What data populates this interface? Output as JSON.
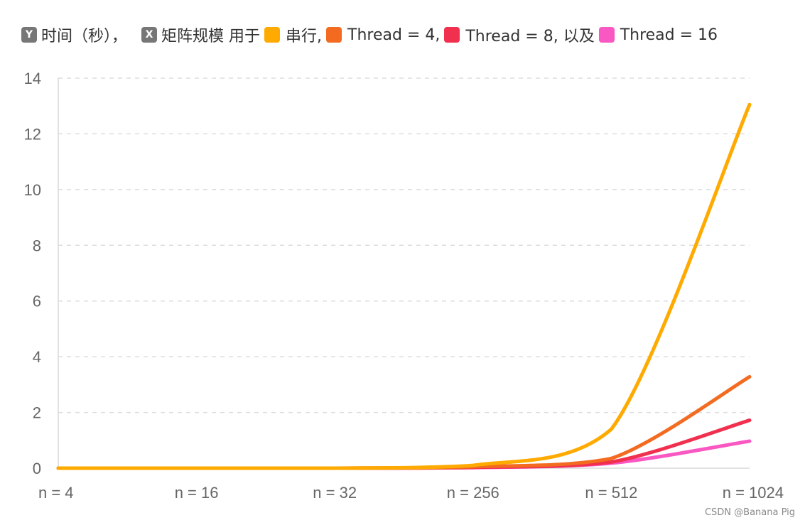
{
  "legend": {
    "y_badge": "Y",
    "y_text": "时间（秒），",
    "x_badge": "X",
    "x_text": "矩阵规模 用于",
    "items": [
      {
        "label": "串行,",
        "color": "#FFAA00"
      },
      {
        "label": "Thread = 4,",
        "color": "#F26B21"
      },
      {
        "label": "Thread = 8, 以及",
        "color": "#F0304E"
      },
      {
        "label": "Thread = 16",
        "color": "#F957C2"
      }
    ]
  },
  "watermark": "CSDN @Banana Pig",
  "chart_data": {
    "type": "line",
    "title": "",
    "xlabel": "",
    "ylabel": "",
    "categories": [
      "n = 4",
      "n = 16",
      "n = 32",
      "n = 256",
      "n = 512",
      "n = 1024"
    ],
    "ylim": [
      0,
      14
    ],
    "yticks": [
      0,
      2,
      4,
      6,
      8,
      10,
      12,
      14
    ],
    "grid": true,
    "legend_position": "top",
    "series": [
      {
        "name": "串行",
        "color": "#FFAA00",
        "values": [
          0,
          0,
          0,
          0.1,
          1.4,
          13.05
        ]
      },
      {
        "name": "Thread = 4",
        "color": "#F26B21",
        "values": [
          0,
          0,
          0,
          0.05,
          0.35,
          3.28
        ]
      },
      {
        "name": "Thread = 8",
        "color": "#F0304E",
        "values": [
          0,
          0,
          0,
          0.03,
          0.22,
          1.72
        ]
      },
      {
        "name": "Thread = 16",
        "color": "#F957C2",
        "values": [
          0,
          0,
          0,
          0.02,
          0.18,
          0.97
        ]
      }
    ]
  }
}
